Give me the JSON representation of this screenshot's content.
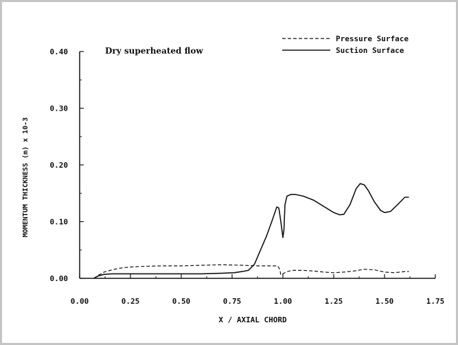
{
  "chart_data": {
    "type": "line",
    "title": "",
    "annotation": "Dry superheated flow",
    "xlabel": "X / AXIAL CHORD",
    "ylabel": "MOMENTUM THICKNESS (m) x 10-3",
    "xlim": [
      0.0,
      1.75
    ],
    "ylim": [
      0.0,
      0.4
    ],
    "x_ticks": [
      "0.00",
      "0.25",
      "0.50",
      "0.75",
      "1.00",
      "1.25",
      "1.50",
      "1.75"
    ],
    "y_ticks": [
      "0.00",
      "0.10",
      "0.20",
      "0.30",
      "0.40"
    ],
    "grid": false,
    "legend_position": "top-right",
    "series": [
      {
        "name": "Pressure Surface",
        "style": "dashed",
        "x": [
          0.07,
          0.09,
          0.12,
          0.16,
          0.2,
          0.25,
          0.3,
          0.4,
          0.5,
          0.6,
          0.7,
          0.8,
          0.88,
          0.95,
          0.975,
          0.985,
          0.99,
          1.0,
          1.02,
          1.05,
          1.1,
          1.15,
          1.2,
          1.25,
          1.3,
          1.35,
          1.4,
          1.45,
          1.5,
          1.55,
          1.6,
          1.62
        ],
        "y": [
          0.0,
          0.005,
          0.011,
          0.015,
          0.018,
          0.02,
          0.021,
          0.022,
          0.022,
          0.023,
          0.024,
          0.023,
          0.022,
          0.022,
          0.022,
          0.015,
          0.006,
          0.008,
          0.012,
          0.014,
          0.014,
          0.013,
          0.011,
          0.01,
          0.011,
          0.013,
          0.016,
          0.015,
          0.011,
          0.01,
          0.012,
          0.012
        ]
      },
      {
        "name": "Suction Surface",
        "style": "solid",
        "x": [
          0.07,
          0.09,
          0.12,
          0.16,
          0.2,
          0.3,
          0.4,
          0.5,
          0.6,
          0.7,
          0.76,
          0.8,
          0.83,
          0.86,
          0.89,
          0.92,
          0.95,
          0.97,
          0.98,
          0.99,
          1.0,
          1.005,
          1.01,
          1.02,
          1.04,
          1.06,
          1.1,
          1.15,
          1.2,
          1.25,
          1.28,
          1.3,
          1.33,
          1.36,
          1.38,
          1.4,
          1.42,
          1.45,
          1.48,
          1.5,
          1.53,
          1.57,
          1.6,
          1.62
        ],
        "y": [
          0.0,
          0.004,
          0.007,
          0.008,
          0.008,
          0.008,
          0.008,
          0.008,
          0.008,
          0.009,
          0.01,
          0.012,
          0.014,
          0.025,
          0.05,
          0.075,
          0.105,
          0.126,
          0.124,
          0.1,
          0.072,
          0.085,
          0.13,
          0.145,
          0.148,
          0.148,
          0.145,
          0.138,
          0.127,
          0.116,
          0.112,
          0.113,
          0.13,
          0.158,
          0.167,
          0.165,
          0.155,
          0.135,
          0.12,
          0.116,
          0.118,
          0.132,
          0.143,
          0.143
        ]
      }
    ]
  }
}
